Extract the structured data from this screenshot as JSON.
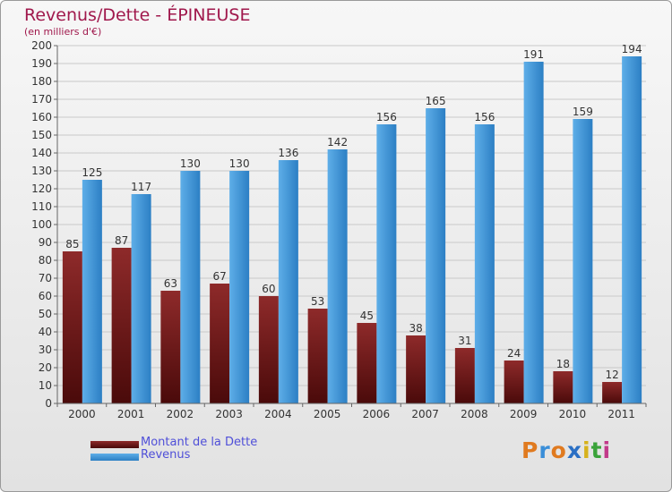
{
  "title": "Revenus/Dette - ÉPINEUSE",
  "subtitle": "(en milliers d'€)",
  "logo": "Proxiti",
  "colors": {
    "dette_top": "#8e2a2a",
    "dette_bottom": "#4a0a0a",
    "revenus_top": "#5eaee8",
    "revenus_bottom": "#2c7fc4",
    "title": "#a0184c",
    "legend_text": "#4f4fd8"
  },
  "chart_data": {
    "type": "bar",
    "categories": [
      "2000",
      "2001",
      "2002",
      "2003",
      "2004",
      "2005",
      "2006",
      "2007",
      "2008",
      "2009",
      "2010",
      "2011"
    ],
    "series": [
      {
        "name": "Montant de la Dette",
        "values": [
          85,
          87,
          63,
          67,
          60,
          53,
          45,
          38,
          31,
          24,
          18,
          12
        ]
      },
      {
        "name": "Revenus",
        "values": [
          125,
          117,
          130,
          130,
          136,
          142,
          156,
          165,
          156,
          191,
          159,
          194
        ]
      }
    ],
    "ylim": [
      0,
      200
    ],
    "ytick_step": 10,
    "grid": true,
    "legend_position": "bottom-left",
    "data_labels": true
  }
}
